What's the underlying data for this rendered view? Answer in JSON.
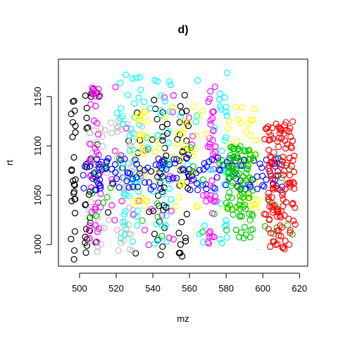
{
  "chart_data": {
    "type": "scatter",
    "title": "d)",
    "xlabel": "mz",
    "ylabel": "rt",
    "xlim": [
      488.5,
      624.5
    ],
    "ylim": [
      978,
      1188
    ],
    "xticks": [
      500,
      520,
      540,
      560,
      580,
      600,
      620
    ],
    "yticks": [
      1000,
      1050,
      1100,
      1150
    ],
    "grid": false,
    "marker": "open-circle",
    "groups": [
      {
        "color": "#000000",
        "x_range": [
          490,
          560
        ],
        "y_range": [
          984,
          1158
        ],
        "bands": [
          [
            495,
            498
          ],
          [
            503,
            510
          ],
          [
            540,
            548
          ],
          [
            553,
            560
          ]
        ],
        "count": 130
      },
      {
        "color": "#bebebe",
        "x_range": [
          505,
          535
        ],
        "y_range": [
          992,
          1130
        ],
        "bands": [
          [
            505,
            515
          ],
          [
            520,
            530
          ]
        ],
        "count": 90
      },
      {
        "color": "#ff00ff",
        "x_range": [
          505,
          575
        ],
        "y_range": [
          995,
          1165
        ],
        "bands": [
          [
            505,
            512
          ],
          [
            570,
            575
          ]
        ],
        "count": 110
      },
      {
        "color": "#00ffff",
        "x_range": [
          520,
          582
        ],
        "y_range": [
          1000,
          1175
        ],
        "bands": [
          [
            522,
            533
          ],
          [
            542,
            550
          ],
          [
            576,
            581
          ]
        ],
        "count": 120
      },
      {
        "color": "#ffff00",
        "x_range": [
          528,
          598
        ],
        "y_range": [
          1035,
          1142
        ],
        "bands": [
          [
            528,
            538
          ],
          [
            553,
            565
          ],
          [
            585,
            598
          ]
        ],
        "count": 110
      },
      {
        "color": "#0000ff",
        "x_range": [
          502,
          612
        ],
        "y_range": [
          1055,
          1088
        ],
        "bands": [],
        "count": 140
      },
      {
        "color": "#00cc00",
        "x_range": [
          505,
          617
        ],
        "y_range": [
          1005,
          1100
        ],
        "bands": [
          [
            580,
            595
          ]
        ],
        "count": 130
      },
      {
        "color": "#ff0000",
        "x_range": [
          600,
          618
        ],
        "y_range": [
          995,
          1125
        ],
        "bands": [
          [
            603,
            618
          ]
        ],
        "count": 130
      }
    ]
  }
}
